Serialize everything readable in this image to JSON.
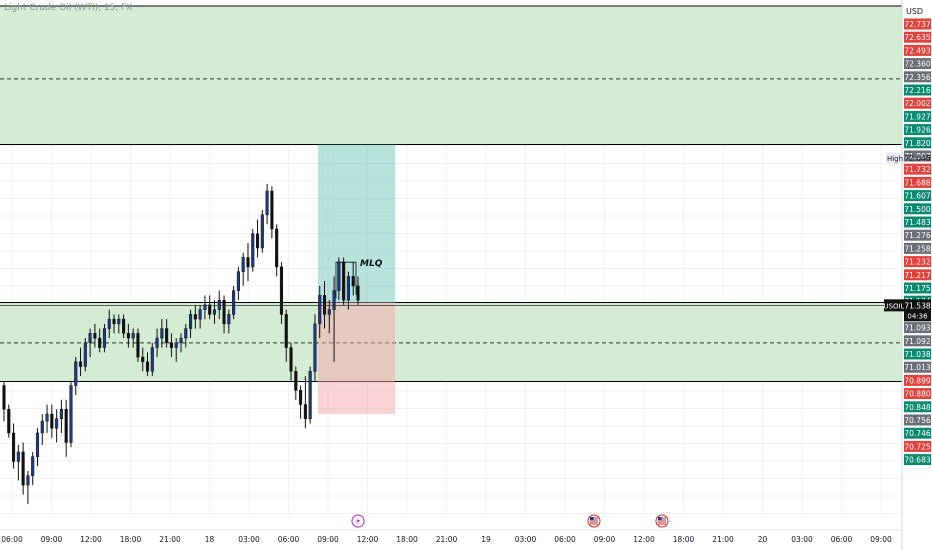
{
  "header": {
    "symbol_title": "Light Crude Oil (WTI), 15, FX",
    "currency": "USD"
  },
  "colors": {
    "zone_fill": "#d4ecd4",
    "zone_border": "#000000",
    "candle_up": "#1e3a8a",
    "candle_down": "#111111",
    "profit_fill": "#5fc2b2",
    "loss_fill": "#f3a8a8",
    "price_red": "#e0423c",
    "price_green": "#0b8a6f",
    "price_gray": "#6b6f78"
  },
  "annotation": {
    "label": "MLQ"
  },
  "current_price": {
    "symbol": "USOIL",
    "price": "71.538",
    "countdown": "04:36"
  },
  "high_tag": {
    "label": "High",
    "price": "72.048"
  },
  "price_labels": [
    {
      "text": "72.737",
      "color": "red"
    },
    {
      "text": "72.635",
      "color": "red"
    },
    {
      "text": "72.493",
      "color": "red"
    },
    {
      "text": "72.360",
      "color": "gray"
    },
    {
      "text": "72.356",
      "color": "gray"
    },
    {
      "text": "72.216",
      "color": "green"
    },
    {
      "text": "72.002",
      "color": "red"
    },
    {
      "text": "71.927",
      "color": "green"
    },
    {
      "text": "71.926",
      "color": "green"
    },
    {
      "text": "71.820",
      "color": "green"
    },
    {
      "text": "71.807",
      "color": "gray"
    },
    {
      "text": "71.732",
      "color": "red"
    },
    {
      "text": "71.688",
      "color": "red"
    },
    {
      "text": "71.607",
      "color": "green"
    },
    {
      "text": "71.500",
      "color": "green"
    },
    {
      "text": "71.483",
      "color": "green"
    },
    {
      "text": "71.276",
      "color": "gray"
    },
    {
      "text": "71.258",
      "color": "gray"
    },
    {
      "text": "71.232",
      "color": "red"
    },
    {
      "text": "71.217",
      "color": "red"
    },
    {
      "text": "71.175",
      "color": "green"
    },
    {
      "text": "71.174",
      "color": "green"
    },
    {
      "text": "71.174",
      "color": "green"
    },
    {
      "text": "71.093",
      "color": "gray"
    },
    {
      "text": "71.092",
      "color": "gray"
    },
    {
      "text": "71.038",
      "color": "green"
    },
    {
      "text": "71.013",
      "color": "gray"
    },
    {
      "text": "70.899",
      "color": "red"
    },
    {
      "text": "70.880",
      "color": "red"
    },
    {
      "text": "70.848",
      "color": "green"
    },
    {
      "text": "70.756",
      "color": "gray"
    },
    {
      "text": "70.746",
      "color": "green"
    },
    {
      "text": "70.725",
      "color": "red"
    },
    {
      "text": "70.683",
      "color": "green"
    }
  ],
  "time_labels": [
    "06:00",
    "09:00",
    "12:00",
    "18:00",
    "21:00",
    "18",
    "03:00",
    "06:00",
    "09:00",
    "12:00",
    "18:00",
    "21:00",
    "19",
    "03:00",
    "06:00",
    "09:00",
    "12:00",
    "18:00",
    "21:00",
    "20",
    "03:00",
    "06:00",
    "09:00"
  ],
  "event_markers": [
    {
      "icon": "lightning-icon"
    },
    {
      "icon": "us-flag-icon"
    },
    {
      "icon": "us-flag-icon"
    }
  ],
  "chart_data": {
    "type": "candlestick",
    "symbol": "USOIL",
    "interval": "15",
    "y_range": [
      70.65,
      72.8
    ],
    "ohlc": [
      [
        71.2,
        71.22,
        71.05,
        71.1
      ],
      [
        71.1,
        71.12,
        70.98,
        71.0
      ],
      [
        71.0,
        71.04,
        70.85,
        70.88
      ],
      [
        70.88,
        70.95,
        70.8,
        70.92
      ],
      [
        70.92,
        70.96,
        70.74,
        70.78
      ],
      [
        70.78,
        70.84,
        70.7,
        70.82
      ],
      [
        70.82,
        70.92,
        70.78,
        70.9
      ],
      [
        70.9,
        71.02,
        70.86,
        71.0
      ],
      [
        71.0,
        71.08,
        70.95,
        71.05
      ],
      [
        71.05,
        71.12,
        71.0,
        71.08
      ],
      [
        71.08,
        71.12,
        70.98,
        71.02
      ],
      [
        71.02,
        71.1,
        70.96,
        71.06
      ],
      [
        71.06,
        71.14,
        71.0,
        71.1
      ],
      [
        71.1,
        71.14,
        70.9,
        70.96
      ],
      [
        70.96,
        71.22,
        70.94,
        71.2
      ],
      [
        71.2,
        71.32,
        71.16,
        71.3
      ],
      [
        71.3,
        71.36,
        71.24,
        71.28
      ],
      [
        71.28,
        71.4,
        71.26,
        71.38
      ],
      [
        71.38,
        71.44,
        71.32,
        71.42
      ],
      [
        71.42,
        71.46,
        71.36,
        71.4
      ],
      [
        71.4,
        71.44,
        71.34,
        71.36
      ],
      [
        71.36,
        71.46,
        71.34,
        71.44
      ],
      [
        71.44,
        71.52,
        71.4,
        71.48
      ],
      [
        71.48,
        71.5,
        71.42,
        71.46
      ],
      [
        71.46,
        71.5,
        71.42,
        71.48
      ],
      [
        71.48,
        71.5,
        71.4,
        71.42
      ],
      [
        71.42,
        71.46,
        71.36,
        71.4
      ],
      [
        71.4,
        71.44,
        71.36,
        71.42
      ],
      [
        71.42,
        71.44,
        71.3,
        71.32
      ],
      [
        71.32,
        71.36,
        71.26,
        71.3
      ],
      [
        71.3,
        71.34,
        71.24,
        71.26
      ],
      [
        71.26,
        71.38,
        71.24,
        71.36
      ],
      [
        71.36,
        71.44,
        71.32,
        71.4
      ],
      [
        71.4,
        71.48,
        71.36,
        71.44
      ],
      [
        71.44,
        71.48,
        71.36,
        71.38
      ],
      [
        71.38,
        71.42,
        71.32,
        71.36
      ],
      [
        71.36,
        71.4,
        71.3,
        71.38
      ],
      [
        71.38,
        71.42,
        71.34,
        71.4
      ],
      [
        71.4,
        71.46,
        71.36,
        71.44
      ],
      [
        71.44,
        71.52,
        71.4,
        71.5
      ],
      [
        71.5,
        71.54,
        71.44,
        71.48
      ],
      [
        71.48,
        71.54,
        71.44,
        71.52
      ],
      [
        71.52,
        71.58,
        71.48,
        71.54
      ],
      [
        71.54,
        71.58,
        71.48,
        71.5
      ],
      [
        71.5,
        71.56,
        71.46,
        71.52
      ],
      [
        71.52,
        71.6,
        71.48,
        71.56
      ],
      [
        71.56,
        71.58,
        71.42,
        71.46
      ],
      [
        71.46,
        71.52,
        71.42,
        71.5
      ],
      [
        71.5,
        71.62,
        71.48,
        71.6
      ],
      [
        71.6,
        71.7,
        71.56,
        71.68
      ],
      [
        71.68,
        71.76,
        71.62,
        71.74
      ],
      [
        71.74,
        71.8,
        71.64,
        71.7
      ],
      [
        71.7,
        71.86,
        71.68,
        71.84
      ],
      [
        71.84,
        71.9,
        71.74,
        71.78
      ],
      [
        71.78,
        71.94,
        71.76,
        71.92
      ],
      [
        71.92,
        72.05,
        71.88,
        72.02
      ],
      [
        72.02,
        72.04,
        71.82,
        71.86
      ],
      [
        71.86,
        71.88,
        71.66,
        71.7
      ],
      [
        71.7,
        71.72,
        71.46,
        71.5
      ],
      [
        71.5,
        71.52,
        71.3,
        71.36
      ],
      [
        71.36,
        71.38,
        71.22,
        71.26
      ],
      [
        71.26,
        71.28,
        71.14,
        71.18
      ],
      [
        71.18,
        71.2,
        71.06,
        71.12
      ],
      [
        71.12,
        71.24,
        71.02,
        71.06
      ],
      [
        71.06,
        71.28,
        71.04,
        71.26
      ],
      [
        71.26,
        71.5,
        71.22,
        71.46
      ],
      [
        71.46,
        71.62,
        71.4,
        71.58
      ],
      [
        71.58,
        71.64,
        71.44,
        71.5
      ],
      [
        71.5,
        71.56,
        71.42,
        71.52
      ],
      [
        71.52,
        71.66,
        71.3,
        71.6
      ],
      [
        71.6,
        71.74,
        71.56,
        71.72
      ],
      [
        71.72,
        71.74,
        71.54,
        71.56
      ],
      [
        71.56,
        71.68,
        71.52,
        71.66
      ],
      [
        71.66,
        71.72,
        71.58,
        71.62
      ],
      [
        71.62,
        71.66,
        71.54,
        71.56
      ]
    ],
    "zones": [
      {
        "top": 72.8,
        "bottom": 72.216,
        "mid": 72.493
      },
      {
        "top": 71.55,
        "bottom": 71.217,
        "mid": 71.38
      }
    ],
    "position": {
      "entry": 71.55,
      "target": 72.216,
      "stop": 71.08
    },
    "mlq_box": {
      "top": 71.72,
      "bottom": 71.6
    }
  }
}
